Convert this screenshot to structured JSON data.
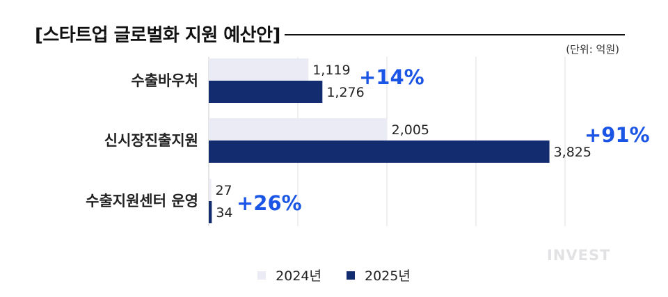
{
  "title": "[스타트업 글로벌화 지원 예산안]",
  "unit": "(단위: 억원)",
  "watermark": "INVEST",
  "colors": {
    "series_2024": "#ebebf5",
    "series_2025": "#132c6f",
    "growth": "#1b55e6",
    "grid": "#dcdcdc"
  },
  "chart_data": {
    "type": "bar",
    "orientation": "horizontal",
    "title": "[스타트업 글로벌화 지원 예산안]",
    "unit": "(단위: 억원)",
    "categories": [
      "수출바우처",
      "신시장진출지원",
      "수출지원센터 운영"
    ],
    "series": [
      {
        "name": "2024년",
        "values": [
          1119,
          2005,
          27
        ],
        "labels": [
          "1,119",
          "2,005",
          "27"
        ]
      },
      {
        "name": "2025년",
        "values": [
          1276,
          3825,
          34
        ],
        "labels": [
          "1,276",
          "3,825",
          "34"
        ]
      }
    ],
    "growth_labels": [
      "+14%",
      "+91%",
      "+26%"
    ],
    "xlim": [
      0,
      4000
    ],
    "grid": true,
    "legend_position": "bottom"
  }
}
